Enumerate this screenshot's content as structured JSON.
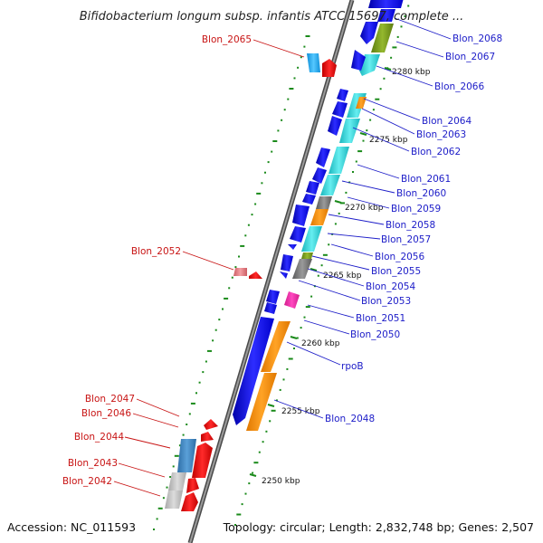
{
  "title": "Bifidobacterium longum subsp. infantis ATCC 15697, complete ...",
  "accession": "Accession: NC_011593",
  "summary": "Topology: circular; Length: 2,832,748 bp; Genes: 2,507",
  "colors": {
    "backbone": "#888888",
    "blue_label": "#1c1cc8",
    "red_label": "#c81414",
    "tick": "#1a8a1a"
  },
  "scale_labels": [
    "2250 kbp",
    "2255 kbp",
    "2260 kbp",
    "2265 kbp",
    "2270 kbp",
    "2275 kbp",
    "2280 kbp"
  ],
  "forward_gene_labels": [
    "Blon_2068",
    "Blon_2067",
    "Blon_2066",
    "Blon_2064",
    "Blon_2063",
    "Blon_2062",
    "Blon_2061",
    "Blon_2060",
    "Blon_2059",
    "Blon_2058",
    "Blon_2057",
    "Blon_2056",
    "Blon_2055",
    "Blon_2054",
    "Blon_2053",
    "Blon_2051",
    "Blon_2050",
    "rpoB",
    "Blon_2048"
  ],
  "reverse_gene_labels": [
    "Blon_2065",
    "Blon_2052",
    "Blon_2047",
    "Blon_2046",
    "Blon_2044",
    "Blon_2043",
    "Blon_2042"
  ]
}
